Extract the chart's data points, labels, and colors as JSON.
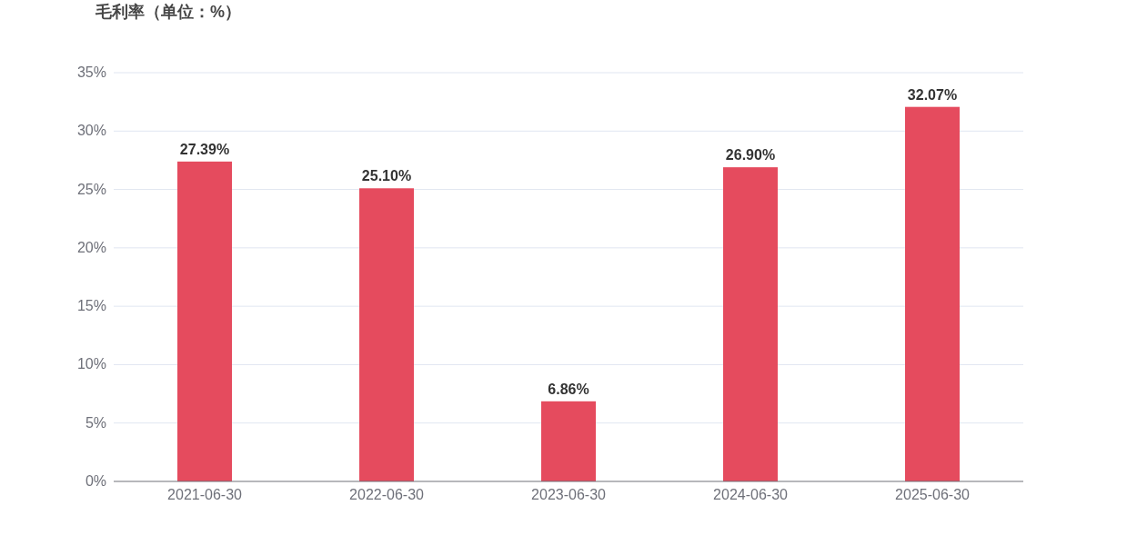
{
  "chart_data": {
    "type": "bar",
    "title": "毛利率（单位：%）",
    "categories": [
      "2021-06-30",
      "2022-06-30",
      "2023-06-30",
      "2024-06-30",
      "2025-06-30"
    ],
    "values": [
      27.39,
      25.1,
      6.86,
      26.9,
      32.07
    ],
    "value_labels": [
      "27.39%",
      "25.10%",
      "6.86%",
      "26.90%",
      "32.07%"
    ],
    "color": "#e54b5e",
    "ylim": [
      0,
      35
    ],
    "yticks": [
      {
        "value": 0,
        "label": "0%"
      },
      {
        "value": 5,
        "label": "5%"
      },
      {
        "value": 10,
        "label": "10%"
      },
      {
        "value": 15,
        "label": "15%"
      },
      {
        "value": 20,
        "label": "20%"
      },
      {
        "value": 25,
        "label": "25%"
      },
      {
        "value": 30,
        "label": "30%"
      },
      {
        "value": 35,
        "label": "35%"
      }
    ],
    "grid": "y"
  }
}
